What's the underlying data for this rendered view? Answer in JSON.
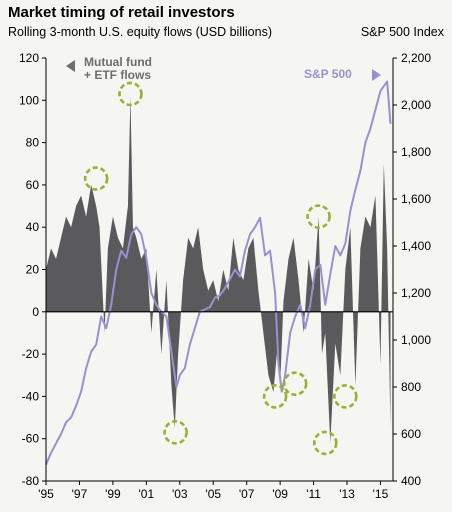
{
  "chart_data": {
    "type": "area",
    "title": "Market timing of retail investors",
    "subtitle": "Rolling 3-month U.S. equity flows (USD billions)",
    "y2label": "S&P 500 Index",
    "x_ticks": [
      "'95",
      "'97",
      "'99",
      "'01",
      "'03",
      "'05",
      "'07",
      "'09",
      "'11",
      "'13",
      "'15"
    ],
    "ylim": [
      -80,
      120
    ],
    "y_ticks": [
      "120",
      "100",
      "80",
      "60",
      "40",
      "20",
      "0",
      "-20",
      "-40",
      "-60",
      "-80"
    ],
    "y2lim": [
      400,
      2200
    ],
    "y2_ticks": [
      "2,200",
      "2,000",
      "1,800",
      "1,600",
      "1,400",
      "1,200",
      "1,000",
      "800",
      "600",
      "400"
    ],
    "grid": false,
    "series": [
      {
        "name": "Mutual fund + ETF flows",
        "axis": "left",
        "color": "#5a5a5c",
        "x": [
          1995.0,
          1995.3,
          1995.6,
          1995.9,
          1996.2,
          1996.5,
          1996.8,
          1997.1,
          1997.4,
          1997.7,
          1998.0,
          1998.2,
          1998.5,
          1998.7,
          1999.0,
          1999.3,
          1999.6,
          1999.9,
          2000.05,
          2000.2,
          2000.4,
          2000.7,
          2001.0,
          2001.3,
          2001.6,
          2001.9,
          2002.2,
          2002.5,
          2002.7,
          2002.9,
          2003.2,
          2003.5,
          2003.8,
          2004.1,
          2004.4,
          2004.7,
          2005.0,
          2005.3,
          2005.6,
          2005.9,
          2006.2,
          2006.5,
          2006.8,
          2007.1,
          2007.4,
          2007.7,
          2008.0,
          2008.3,
          2008.6,
          2008.8,
          2009.0,
          2009.2,
          2009.5,
          2009.8,
          2010.1,
          2010.4,
          2010.7,
          2011.0,
          2011.3,
          2011.5,
          2011.7,
          2012.0,
          2012.3,
          2012.6,
          2012.9,
          2013.2,
          2013.5,
          2013.8,
          2014.1,
          2014.4,
          2014.7,
          2015.0,
          2015.2,
          2015.4,
          2015.6
        ],
        "y": [
          20,
          30,
          25,
          35,
          45,
          40,
          50,
          55,
          45,
          60,
          50,
          40,
          -10,
          30,
          45,
          35,
          30,
          50,
          102,
          40,
          35,
          25,
          30,
          -10,
          20,
          -20,
          15,
          -35,
          -55,
          -20,
          15,
          35,
          30,
          40,
          20,
          10,
          15,
          5,
          20,
          10,
          35,
          20,
          15,
          30,
          35,
          10,
          -10,
          -30,
          -38,
          -20,
          -35,
          5,
          25,
          35,
          15,
          -10,
          25,
          10,
          45,
          -20,
          -10,
          -62,
          -15,
          -30,
          20,
          40,
          -35,
          30,
          45,
          40,
          55,
          -25,
          70,
          30,
          -55
        ]
      },
      {
        "name": "S&P 500",
        "axis": "right",
        "color": "#9b8fcf",
        "x": [
          1995.0,
          1995.3,
          1995.6,
          1995.9,
          1996.2,
          1996.5,
          1996.8,
          1997.1,
          1997.4,
          1997.7,
          1998.0,
          1998.3,
          1998.6,
          1998.9,
          1999.2,
          1999.5,
          1999.8,
          2000.1,
          2000.4,
          2000.7,
          2001.0,
          2001.3,
          2001.6,
          2001.9,
          2002.2,
          2002.5,
          2002.8,
          2003.0,
          2003.3,
          2003.6,
          2003.9,
          2004.2,
          2004.5,
          2004.8,
          2005.1,
          2005.4,
          2005.7,
          2006.0,
          2006.3,
          2006.6,
          2006.9,
          2007.2,
          2007.5,
          2007.8,
          2008.1,
          2008.4,
          2008.7,
          2008.9,
          2009.1,
          2009.3,
          2009.6,
          2009.9,
          2010.2,
          2010.5,
          2010.8,
          2011.1,
          2011.4,
          2011.7,
          2012.0,
          2012.3,
          2012.6,
          2012.9,
          2013.2,
          2013.5,
          2013.8,
          2014.1,
          2014.4,
          2014.7,
          2015.0,
          2015.2,
          2015.4,
          2015.6
        ],
        "y": [
          470,
          520,
          560,
          600,
          650,
          670,
          720,
          780,
          880,
          950,
          980,
          1100,
          1050,
          1150,
          1300,
          1380,
          1350,
          1450,
          1480,
          1450,
          1350,
          1200,
          1150,
          1120,
          1100,
          950,
          800,
          850,
          880,
          980,
          1050,
          1120,
          1130,
          1140,
          1180,
          1190,
          1220,
          1260,
          1300,
          1270,
          1380,
          1450,
          1480,
          1520,
          1360,
          1380,
          1200,
          900,
          780,
          850,
          1030,
          1100,
          1150,
          1050,
          1150,
          1300,
          1320,
          1150,
          1280,
          1400,
          1360,
          1410,
          1550,
          1640,
          1720,
          1840,
          1900,
          1980,
          2060,
          2080,
          2100,
          1920
        ]
      }
    ],
    "annotations": [
      "Mutual fund",
      "+ ETF flows",
      "S&P 500"
    ]
  }
}
